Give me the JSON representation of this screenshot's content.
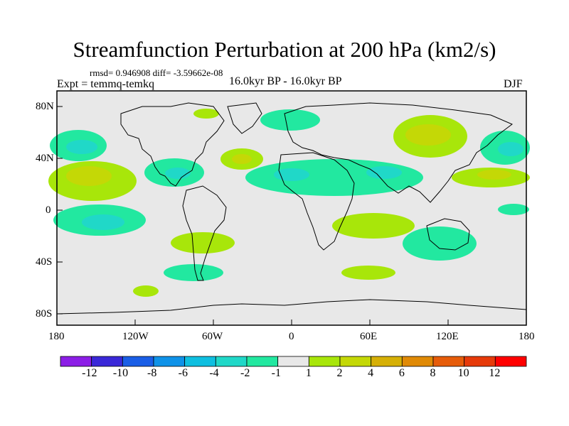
{
  "title": "Streamfunction Perturbation at 200 hPa (km2/s)",
  "stats": "rmsd= 0.946908 diff= -3.59662e-08",
  "left_label": "Expt = temmq-temkq",
  "center_label": "16.0kyr BP - 16.0kyr BP",
  "right_label": "DJF",
  "y_ticks": [
    "80N",
    "40N",
    "0",
    "40S",
    "80S"
  ],
  "x_ticks": [
    "180",
    "120W",
    "60W",
    "0",
    "60E",
    "120E",
    "180"
  ],
  "colorbar": {
    "labels": [
      "-12",
      "-10",
      "-8",
      "-6",
      "-4",
      "-2",
      "-1",
      "1",
      "2",
      "4",
      "6",
      "8",
      "10",
      "12"
    ],
    "colors": [
      "#8c1ee6",
      "#3a28d8",
      "#1a5ee6",
      "#0f92e8",
      "#0fbfe0",
      "#20d8c8",
      "#22e8a0",
      "#e8e8e8",
      "#a8e60a",
      "#c4d806",
      "#d6b006",
      "#e08a06",
      "#e65c0a",
      "#e63a0a",
      "#ff0000"
    ]
  },
  "colors": {
    "background": "#e8e8e8",
    "frame": "#000000"
  }
}
